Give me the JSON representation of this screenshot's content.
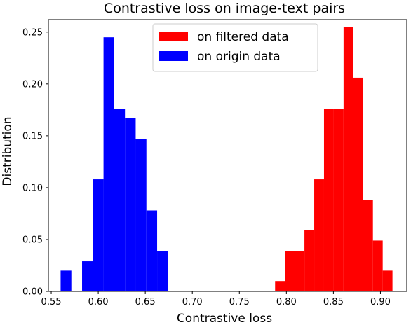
{
  "chart_data": {
    "type": "bar",
    "title": "Contrastive loss on image-text pairs",
    "xlabel": "Contrastive loss",
    "ylabel": "Distribution",
    "xlim": [
      0.547,
      0.928
    ],
    "ylim": [
      0,
      0.262
    ],
    "xticks": [
      {
        "value": 0.55,
        "label": "0.55"
      },
      {
        "value": 0.6,
        "label": "0.60"
      },
      {
        "value": 0.65,
        "label": "0.65"
      },
      {
        "value": 0.7,
        "label": "0.70"
      },
      {
        "value": 0.75,
        "label": "0.75"
      },
      {
        "value": 0.8,
        "label": "0.80"
      },
      {
        "value": 0.85,
        "label": "0.85"
      },
      {
        "value": 0.9,
        "label": "0.90"
      }
    ],
    "yticks": [
      {
        "value": 0.0,
        "label": "0.00"
      },
      {
        "value": 0.05,
        "label": "0.05"
      },
      {
        "value": 0.1,
        "label": "0.10"
      },
      {
        "value": 0.15,
        "label": "0.15"
      },
      {
        "value": 0.2,
        "label": "0.20"
      },
      {
        "value": 0.25,
        "label": "0.25"
      }
    ],
    "grid": false,
    "legend_position": "top-center",
    "series": [
      {
        "name": "on filtered data",
        "color": "#ff0000",
        "bin_width": 0.0104,
        "bins": [
          {
            "x0": 0.788,
            "value": 0.01
          },
          {
            "x0": 0.7984,
            "value": 0.039
          },
          {
            "x0": 0.8088,
            "value": 0.039
          },
          {
            "x0": 0.8192,
            "value": 0.059
          },
          {
            "x0": 0.8296,
            "value": 0.108
          },
          {
            "x0": 0.84,
            "value": 0.176
          },
          {
            "x0": 0.8504,
            "value": 0.176
          },
          {
            "x0": 0.8608,
            "value": 0.255
          },
          {
            "x0": 0.8712,
            "value": 0.206
          },
          {
            "x0": 0.8816,
            "value": 0.088
          },
          {
            "x0": 0.892,
            "value": 0.049
          },
          {
            "x0": 0.9024,
            "value": 0.02
          }
        ]
      },
      {
        "name": "on origin data",
        "color": "#0000ff",
        "bin_width": 0.0114,
        "bins": [
          {
            "x0": 0.56,
            "value": 0.02
          },
          {
            "x0": 0.5714,
            "value": 0.0
          },
          {
            "x0": 0.5828,
            "value": 0.029
          },
          {
            "x0": 0.5942,
            "value": 0.108
          },
          {
            "x0": 0.6056,
            "value": 0.245
          },
          {
            "x0": 0.617,
            "value": 0.176
          },
          {
            "x0": 0.6284,
            "value": 0.167
          },
          {
            "x0": 0.6398,
            "value": 0.147
          },
          {
            "x0": 0.6512,
            "value": 0.078
          },
          {
            "x0": 0.6626,
            "value": 0.039
          }
        ]
      }
    ]
  }
}
